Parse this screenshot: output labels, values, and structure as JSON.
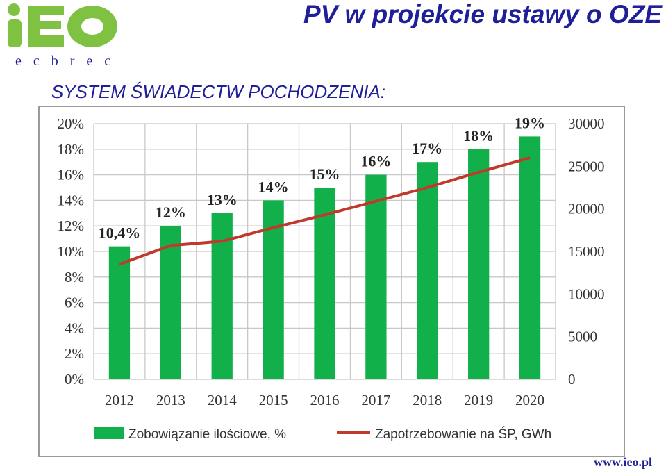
{
  "header": {
    "title": "PV w projekcie ustawy o OZE",
    "subtitle": "SYSTEM ŚWIADECTW POCHODZENIA:",
    "website": "www.ieo.pl"
  },
  "logo": {
    "text": "iEO",
    "tagline": "e c b r e c"
  },
  "colors": {
    "title": "#1f1f99",
    "bar": "#12b04a",
    "line": "#c0392b",
    "logo_green": "#7fc241"
  },
  "chart_data": {
    "type": "bar",
    "title": "",
    "categories": [
      "2012",
      "2013",
      "2014",
      "2015",
      "2016",
      "2017",
      "2018",
      "2019",
      "2020"
    ],
    "y_left": {
      "min": 0,
      "max": 20,
      "ticks": [
        "0%",
        "2%",
        "4%",
        "6%",
        "8%",
        "10%",
        "12%",
        "14%",
        "16%",
        "18%",
        "20%"
      ]
    },
    "y_right": {
      "min": 0,
      "max": 30000,
      "ticks": [
        "0",
        "5000",
        "10000",
        "15000",
        "20000",
        "25000",
        "30000"
      ]
    },
    "grid": true,
    "legend_position": "bottom",
    "series": [
      {
        "name": "Zobowiązanie ilościowe, %",
        "type": "bar",
        "axis": "left",
        "values": [
          10.4,
          12,
          13,
          14,
          15,
          16,
          17,
          18,
          19
        ],
        "labels": [
          "10,4%",
          "12%",
          "13%",
          "14%",
          "15%",
          "16%",
          "17%",
          "18%",
          "19%"
        ]
      },
      {
        "name": "Zapotrzebowanie na ŚP, GWh",
        "type": "line",
        "axis": "right",
        "values": [
          13500,
          15700,
          16200,
          17800,
          19300,
          20900,
          22500,
          24300,
          26000
        ]
      }
    ]
  }
}
